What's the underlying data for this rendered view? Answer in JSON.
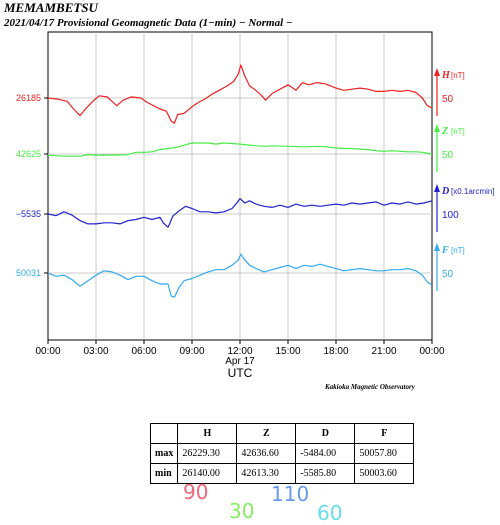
{
  "header": {
    "title": "MEMAMBETSU",
    "subtitle": "2021/04/17  Provisional Geomagnetic Data (1−min)  − Normal −"
  },
  "credit": "Kakioka Magnetic Observatory",
  "chart_data": {
    "type": "line",
    "xlabel": "UTC",
    "x_date_label": "Apr 17",
    "x_ticks": [
      "00:00",
      "03:00",
      "06:00",
      "09:00",
      "12:00",
      "15:00",
      "18:00",
      "21:00",
      "00:00"
    ],
    "xlim_hours": [
      0,
      24
    ],
    "grid": true,
    "series": [
      {
        "name": "H",
        "unit": "[nT]",
        "color": "#ee2222",
        "left_label": "26185",
        "scale_label": "50",
        "points": [
          [
            0,
            0
          ],
          [
            0.6,
            -2
          ],
          [
            1.2,
            -6
          ],
          [
            1.6,
            -20
          ],
          [
            2,
            -32
          ],
          [
            2.4,
            -18
          ],
          [
            2.8,
            -6
          ],
          [
            3.2,
            4
          ],
          [
            3.7,
            2
          ],
          [
            4,
            -6
          ],
          [
            4.3,
            -14
          ],
          [
            4.7,
            -4
          ],
          [
            5.2,
            2
          ],
          [
            5.8,
            0
          ],
          [
            6.2,
            -8
          ],
          [
            6.6,
            -14
          ],
          [
            7,
            -20
          ],
          [
            7.4,
            -24
          ],
          [
            7.7,
            -42
          ],
          [
            7.9,
            -46
          ],
          [
            8.1,
            -30
          ],
          [
            8.5,
            -28
          ],
          [
            9,
            -16
          ],
          [
            9.4,
            -8
          ],
          [
            9.8,
            -2
          ],
          [
            10.2,
            6
          ],
          [
            10.7,
            14
          ],
          [
            11.2,
            22
          ],
          [
            11.6,
            30
          ],
          [
            11.9,
            44
          ],
          [
            12.05,
            60
          ],
          [
            12.3,
            40
          ],
          [
            12.6,
            22
          ],
          [
            12.9,
            16
          ],
          [
            13.3,
            6
          ],
          [
            13.6,
            -4
          ],
          [
            14,
            8
          ],
          [
            14.5,
            16
          ],
          [
            15,
            24
          ],
          [
            15.5,
            14
          ],
          [
            15.9,
            28
          ],
          [
            16.3,
            24
          ],
          [
            16.8,
            28
          ],
          [
            17.3,
            26
          ],
          [
            18,
            18
          ],
          [
            18.5,
            14
          ],
          [
            19,
            16
          ],
          [
            19.5,
            18
          ],
          [
            20,
            16
          ],
          [
            20.5,
            12
          ],
          [
            21,
            12
          ],
          [
            21.5,
            14
          ],
          [
            22,
            12
          ],
          [
            22.5,
            14
          ],
          [
            23,
            10
          ],
          [
            23.4,
            0
          ],
          [
            23.7,
            -14
          ],
          [
            24,
            -18
          ]
        ]
      },
      {
        "name": "Z",
        "unit": "[nT]",
        "color": "#44ee44",
        "left_label": "42625",
        "scale_label": "50",
        "points": [
          [
            0,
            -2
          ],
          [
            1,
            -4
          ],
          [
            2,
            -4
          ],
          [
            2.5,
            -1
          ],
          [
            3,
            -2
          ],
          [
            4,
            -2
          ],
          [
            5,
            -1
          ],
          [
            5.5,
            3
          ],
          [
            6,
            3
          ],
          [
            6.5,
            4
          ],
          [
            7,
            8
          ],
          [
            7.5,
            10
          ],
          [
            8,
            12
          ],
          [
            8.5,
            16
          ],
          [
            9,
            20
          ],
          [
            9.5,
            20
          ],
          [
            10,
            20
          ],
          [
            10.5,
            18
          ],
          [
            11,
            20
          ],
          [
            12,
            18
          ],
          [
            13,
            15
          ],
          [
            13.6,
            14
          ],
          [
            14,
            15
          ],
          [
            15,
            14
          ],
          [
            16,
            13
          ],
          [
            17,
            14
          ],
          [
            18,
            11
          ],
          [
            18.5,
            10
          ],
          [
            19,
            10
          ],
          [
            19.5,
            9
          ],
          [
            20,
            8
          ],
          [
            20.5,
            6
          ],
          [
            21,
            5
          ],
          [
            21.5,
            6
          ],
          [
            22,
            5
          ],
          [
            22.5,
            4
          ],
          [
            23,
            4
          ],
          [
            23.4,
            3
          ],
          [
            24,
            0
          ]
        ]
      },
      {
        "name": "D",
        "unit": "[x0.1arcmin]",
        "color": "#2222cc",
        "left_label": "−5535",
        "scale_label": "100",
        "points": [
          [
            0,
            0
          ],
          [
            0.5,
            -3
          ],
          [
            1,
            4
          ],
          [
            1.5,
            -2
          ],
          [
            2,
            -12
          ],
          [
            2.5,
            -18
          ],
          [
            3,
            -18
          ],
          [
            3.5,
            -16
          ],
          [
            4,
            -16
          ],
          [
            4.5,
            -18
          ],
          [
            5,
            -12
          ],
          [
            5.5,
            -10
          ],
          [
            6,
            -6
          ],
          [
            6.5,
            -10
          ],
          [
            7,
            -6
          ],
          [
            7.2,
            -16
          ],
          [
            7.5,
            -24
          ],
          [
            7.6,
            -18
          ],
          [
            7.8,
            -4
          ],
          [
            8.2,
            6
          ],
          [
            8.6,
            14
          ],
          [
            9,
            10
          ],
          [
            9.5,
            4
          ],
          [
            10,
            4
          ],
          [
            10.5,
            2
          ],
          [
            11,
            4
          ],
          [
            11.5,
            10
          ],
          [
            11.8,
            20
          ],
          [
            12,
            28
          ],
          [
            12.3,
            20
          ],
          [
            12.6,
            24
          ],
          [
            13,
            18
          ],
          [
            13.5,
            14
          ],
          [
            14,
            12
          ],
          [
            14.5,
            16
          ],
          [
            15,
            12
          ],
          [
            15.5,
            18
          ],
          [
            16,
            14
          ],
          [
            16.5,
            16
          ],
          [
            17,
            14
          ],
          [
            17.5,
            16
          ],
          [
            18,
            18
          ],
          [
            18.5,
            16
          ],
          [
            19,
            20
          ],
          [
            19.5,
            18
          ],
          [
            20,
            20
          ],
          [
            20.5,
            22
          ],
          [
            21,
            16
          ],
          [
            21.5,
            20
          ],
          [
            22,
            18
          ],
          [
            22.5,
            22
          ],
          [
            23,
            18
          ],
          [
            23.5,
            20
          ],
          [
            24,
            24
          ]
        ]
      },
      {
        "name": "F",
        "unit": "[nT]",
        "color": "#33aaee",
        "left_label": "50031",
        "scale_label": "50",
        "points": [
          [
            0,
            0
          ],
          [
            0.5,
            -6
          ],
          [
            1,
            -4
          ],
          [
            1.5,
            -12
          ],
          [
            2,
            -24
          ],
          [
            2.5,
            -14
          ],
          [
            3,
            -4
          ],
          [
            3.5,
            4
          ],
          [
            4,
            2
          ],
          [
            4.5,
            -4
          ],
          [
            5,
            -12
          ],
          [
            5.5,
            -6
          ],
          [
            6,
            -6
          ],
          [
            6.5,
            -14
          ],
          [
            7,
            -20
          ],
          [
            7.5,
            -20
          ],
          [
            7.7,
            -42
          ],
          [
            7.9,
            -44
          ],
          [
            8.2,
            -26
          ],
          [
            8.5,
            -14
          ],
          [
            9,
            -10
          ],
          [
            9.5,
            -4
          ],
          [
            10,
            2
          ],
          [
            10.5,
            6
          ],
          [
            11,
            6
          ],
          [
            11.5,
            14
          ],
          [
            11.9,
            24
          ],
          [
            12.05,
            34
          ],
          [
            12.3,
            24
          ],
          [
            12.6,
            14
          ],
          [
            13,
            8
          ],
          [
            13.5,
            2
          ],
          [
            14,
            6
          ],
          [
            14.5,
            10
          ],
          [
            15,
            14
          ],
          [
            15.5,
            8
          ],
          [
            16,
            14
          ],
          [
            16.5,
            12
          ],
          [
            17,
            16
          ],
          [
            17.5,
            12
          ],
          [
            18,
            8
          ],
          [
            18.5,
            4
          ],
          [
            19,
            6
          ],
          [
            19.5,
            8
          ],
          [
            20,
            6
          ],
          [
            20.5,
            4
          ],
          [
            21,
            4
          ],
          [
            21.5,
            6
          ],
          [
            22,
            6
          ],
          [
            22.5,
            8
          ],
          [
            23,
            4
          ],
          [
            23.4,
            -4
          ],
          [
            23.7,
            -16
          ],
          [
            24,
            -22
          ]
        ]
      }
    ]
  },
  "stats_table": {
    "headers": [
      "",
      "H",
      "Z",
      "D",
      "F"
    ],
    "rows": [
      {
        "label": "max",
        "values": [
          "26229.30",
          "42636.60",
          "-5484.00",
          "50057.80"
        ]
      },
      {
        "label": "min",
        "values": [
          "26140.00",
          "42613.30",
          "-5585.80",
          "50003.60"
        ]
      }
    ]
  },
  "handwritten": [
    {
      "text": "90",
      "color": "#ee6677"
    },
    {
      "text": "30",
      "color": "#88ee66"
    },
    {
      "text": "110",
      "color": "#6699ee"
    },
    {
      "text": "60",
      "color": "#66ddee"
    }
  ]
}
